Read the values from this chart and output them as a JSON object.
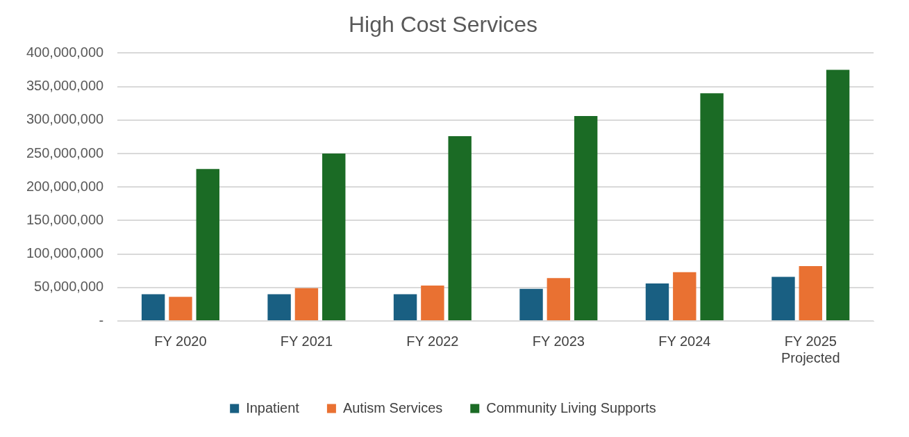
{
  "chart_data": {
    "type": "bar",
    "title": "High Cost Services",
    "categories": [
      "FY 2020",
      "FY 2021",
      "FY 2022",
      "FY 2023",
      "FY 2024",
      "FY 2025 Projected"
    ],
    "series": [
      {
        "name": "Inpatient",
        "color": "#195f82",
        "values": [
          40000000,
          40000000,
          40000000,
          48000000,
          56000000,
          66000000
        ]
      },
      {
        "name": "Autism Services",
        "color": "#e97132",
        "values": [
          36000000,
          49000000,
          53000000,
          64000000,
          73000000,
          82000000
        ]
      },
      {
        "name": "Community Living Supports",
        "color": "#1b6b25",
        "values": [
          227000000,
          250000000,
          276000000,
          306000000,
          340000000,
          375000000
        ]
      }
    ],
    "ylim": [
      0,
      400000000
    ],
    "yticks": [
      {
        "value": 0,
        "label": "-"
      },
      {
        "value": 50000000,
        "label": "50,000,000"
      },
      {
        "value": 100000000,
        "label": "100,000,000"
      },
      {
        "value": 150000000,
        "label": "150,000,000"
      },
      {
        "value": 200000000,
        "label": "200,000,000"
      },
      {
        "value": 250000000,
        "label": "250,000,000"
      },
      {
        "value": 300000000,
        "label": "300,000,000"
      },
      {
        "value": 350000000,
        "label": "350,000,000"
      },
      {
        "value": 400000000,
        "label": "400,000,000"
      }
    ],
    "grid": "y",
    "legend": "bottom"
  }
}
